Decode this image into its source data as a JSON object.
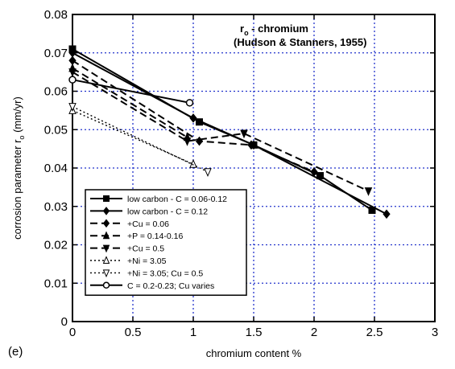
{
  "panel_label": "(e)",
  "chart_data": {
    "type": "line",
    "title_main": "r",
    "title_sub": "o",
    "title_rest": " - chromium",
    "title_line2": "(Hudson & Stanners, 1955)",
    "xlabel": "chromium content %",
    "ylabel": "corrosion parameter  r",
    "ylabel_sub": "o",
    "ylabel_unit": "  (mm/yr)",
    "xlim": [
      0,
      3
    ],
    "ylim": [
      0,
      0.08
    ],
    "xticks": [
      0,
      0.5,
      1,
      1.5,
      2,
      2.5,
      3
    ],
    "xtick_labels": [
      "0",
      "0.5",
      "1",
      "1.5",
      "2",
      "2.5",
      "3"
    ],
    "yticks": [
      0,
      0.01,
      0.02,
      0.03,
      0.04,
      0.05,
      0.06,
      0.07,
      0.08
    ],
    "ytick_labels": [
      "0",
      "0.01",
      "0.02",
      "0.03",
      "0.04",
      "0.05",
      "0.06",
      "0.07",
      "0.08"
    ],
    "grid": true,
    "legend_position": "bottom-left",
    "series": [
      {
        "name": "low carbon - C = 0.06-0.12",
        "dash": "solid",
        "marker": "square",
        "x": [
          0,
          1.05,
          1.5,
          2.05,
          2.48
        ],
        "y": [
          0.071,
          0.052,
          0.046,
          0.038,
          0.029
        ]
      },
      {
        "name": "low carbon - C = 0.12",
        "dash": "solid",
        "marker": "diamond",
        "x": [
          0,
          1.0,
          1.5,
          2.6
        ],
        "y": [
          0.07,
          0.053,
          0.046,
          0.028
        ]
      },
      {
        "name": "+Cu = 0.06",
        "dash": "dash",
        "marker": "diamond",
        "x": [
          0,
          1.05,
          1.48,
          2.0
        ],
        "y": [
          0.068,
          0.047,
          0.046,
          0.039
        ]
      },
      {
        "name": "+P = 0.14-0.16",
        "dash": "dash",
        "marker": "triangle-up",
        "x": [
          0,
          0.95
        ],
        "y": [
          0.066,
          0.048
        ]
      },
      {
        "name": "+Cu = 0.5",
        "dash": "dash",
        "marker": "triangle-down",
        "x": [
          0,
          0.95,
          1.42,
          2.45
        ],
        "y": [
          0.065,
          0.047,
          0.049,
          0.034
        ]
      },
      {
        "name": "+Ni = 3.05",
        "dash": "dot",
        "marker": "triangle-up-open",
        "x": [
          0,
          1.0
        ],
        "y": [
          0.055,
          0.041
        ]
      },
      {
        "name": "+Ni = 3.05; Cu = 0.5",
        "dash": "dot",
        "marker": "triangle-down-open",
        "x": [
          0,
          1.12
        ],
        "y": [
          0.056,
          0.039
        ]
      },
      {
        "name": "C = 0.2-0.23; Cu varies",
        "dash": "solid",
        "marker": "circle-open",
        "x": [
          0,
          0.97
        ],
        "y": [
          0.063,
          0.057
        ]
      }
    ]
  }
}
